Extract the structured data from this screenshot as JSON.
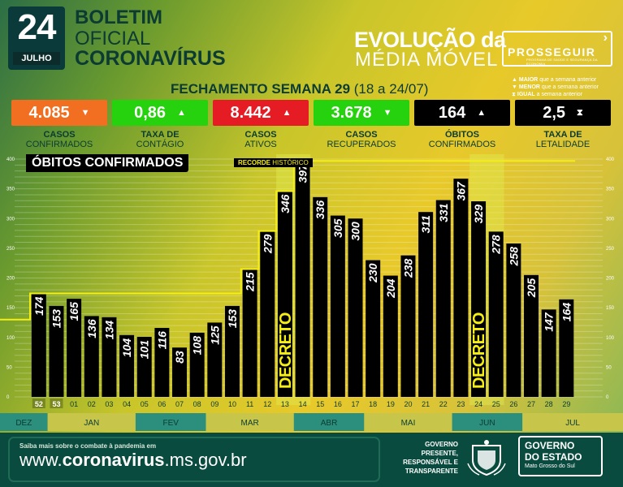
{
  "header": {
    "day": "24",
    "month": "JULHO",
    "bulletin_line1": "BOLETIM",
    "bulletin_line2": "OFICIAL",
    "bulletin_line3": "CORONAVÍRUS",
    "section_line1": "EVOLUÇÃO da",
    "section_line2": "MÉDIA MÓVEL",
    "logo_name": "PROSSEGUIR",
    "logo_subtitle": "PROGRAMA DE SAÚDE E SEGURANÇA DA ECONOMIA"
  },
  "weekly": {
    "title": "FECHAMENTO SEMANA 29",
    "range": "(18 a 24/07)"
  },
  "legend_key": [
    {
      "symbol": "▲",
      "bold": "MAIOR",
      "rest": "que a semana anterior"
    },
    {
      "symbol": "▼",
      "bold": "MENOR",
      "rest": "que a semana anterior"
    },
    {
      "symbol": "⧗",
      "bold": "IGUAL",
      "rest": "a semana anterior"
    }
  ],
  "indicators": [
    {
      "value": "4.085",
      "arrow": "▼",
      "label1": "CASOS",
      "label2": "CONFIRMADOS",
      "color": "#f26f21"
    },
    {
      "value": "0,86",
      "arrow": "▲",
      "label1": "TAXA DE",
      "label2": "CONTÁGIO",
      "color": "#26d10e"
    },
    {
      "value": "8.442",
      "arrow": "▲",
      "label1": "CASOS",
      "label2": "ATIVOS",
      "color": "#e51c24"
    },
    {
      "value": "3.678",
      "arrow": "▼",
      "label1": "CASOS",
      "label2": "RECUPERADOS",
      "color": "#26d10e"
    },
    {
      "value": "164",
      "arrow": "▲",
      "label1": "ÓBITOS",
      "label2": "CONFIRMADOS",
      "color": "#000000"
    },
    {
      "value": "2,5",
      "arrow": "⧗",
      "label1": "TAXA DE",
      "label2": "LETALIDADE",
      "color": "#000000"
    }
  ],
  "chart_data": {
    "type": "bar",
    "title": "ÓBITOS CONFIRMADOS",
    "record_label_bold": "RECORDE",
    "record_label_rest": "HISTÓRICO",
    "categories": [
      "52",
      "53",
      "01",
      "02",
      "03",
      "04",
      "05",
      "06",
      "07",
      "08",
      "09",
      "10",
      "11",
      "12",
      "13",
      "14",
      "15",
      "16",
      "17",
      "18",
      "19",
      "20",
      "21",
      "22",
      "23",
      "24",
      "25",
      "26",
      "27",
      "28",
      "29"
    ],
    "values": [
      174,
      153,
      165,
      136,
      134,
      104,
      101,
      116,
      83,
      108,
      125,
      153,
      215,
      279,
      346,
      397,
      336,
      305,
      300,
      230,
      204,
      238,
      311,
      331,
      367,
      329,
      278,
      258,
      205,
      147,
      164
    ],
    "highlight_weeks": [
      "14",
      "25"
    ],
    "previous_year_weeks": [
      "52",
      "53"
    ],
    "annotations": [
      {
        "text": "DECRETO",
        "week": "13"
      },
      {
        "text": "DECRETO",
        "week": "24"
      }
    ],
    "record_line": {
      "weeks": [
        "51",
        "52",
        "53",
        "01",
        "02",
        "03",
        "04",
        "05",
        "06",
        "07",
        "08",
        "09",
        "10",
        "11",
        "12",
        "13",
        "14",
        "15",
        "16",
        "17",
        "18",
        "19",
        "20",
        "21",
        "22",
        "23",
        "24",
        "25",
        "26",
        "27",
        "28",
        "29"
      ],
      "values": [
        130,
        174,
        174,
        174,
        174,
        174,
        174,
        174,
        174,
        174,
        174,
        174,
        174,
        215,
        279,
        346,
        397,
        397,
        397,
        397,
        397,
        397,
        397,
        397,
        397,
        397,
        397,
        397,
        397,
        397,
        397,
        397
      ]
    },
    "ylim": [
      0,
      400
    ],
    "yticks": [
      0,
      50,
      100,
      150,
      200,
      250,
      300,
      350,
      400
    ],
    "grid": true,
    "months": [
      {
        "label": "DEZ",
        "weeks": [
          "52"
        ]
      },
      {
        "label": "JAN",
        "weeks": [
          "53",
          "01",
          "02",
          "03",
          "04"
        ]
      },
      {
        "label": "FEV",
        "weeks": [
          "05",
          "06",
          "07",
          "08"
        ]
      },
      {
        "label": "MAR",
        "weeks": [
          "09",
          "10",
          "11",
          "12",
          "13"
        ]
      },
      {
        "label": "ABR",
        "weeks": [
          "14",
          "15",
          "16",
          "17"
        ]
      },
      {
        "label": "MAI",
        "weeks": [
          "18",
          "19",
          "20",
          "21",
          "22"
        ]
      },
      {
        "label": "JUN",
        "weeks": [
          "23",
          "24",
          "25",
          "26"
        ]
      },
      {
        "label": "JUL",
        "weeks": [
          "27",
          "28",
          "29"
        ]
      }
    ]
  },
  "footer": {
    "small_text": "Saiba mais sobre o combate à pandemia em",
    "url_prefix": "www.",
    "url_bold": "coronavirus",
    "url_suffix": ".ms.gov.br",
    "tagline": [
      "GOVERNO",
      "PRESENTE,",
      "RESPONSÁVEL E",
      "TRANSPARENTE"
    ],
    "gov_line1": "GOVERNO",
    "gov_line2": "DO ESTADO",
    "gov_line3": "Mato Grosso do Sul"
  }
}
